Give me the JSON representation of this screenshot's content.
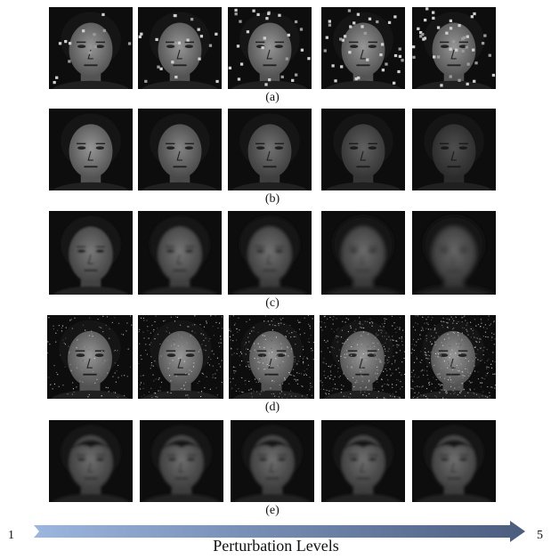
{
  "rows": [
    {
      "caption": "(a)",
      "perturbation": "salt-and-pepper"
    },
    {
      "caption": "(b)",
      "perturbation": "darkening"
    },
    {
      "caption": "(c)",
      "perturbation": "blur"
    },
    {
      "caption": "(d)",
      "perturbation": "gaussian-noise"
    },
    {
      "caption": "(e)",
      "perturbation": "alternate-face"
    }
  ],
  "levels": {
    "start": "1",
    "end": "5"
  },
  "axis_label": "Perturbation Levels",
  "colors": {
    "arrow_start": "#9bb6df",
    "arrow_end": "#4b5d7f",
    "background": "#0d0d0d"
  }
}
